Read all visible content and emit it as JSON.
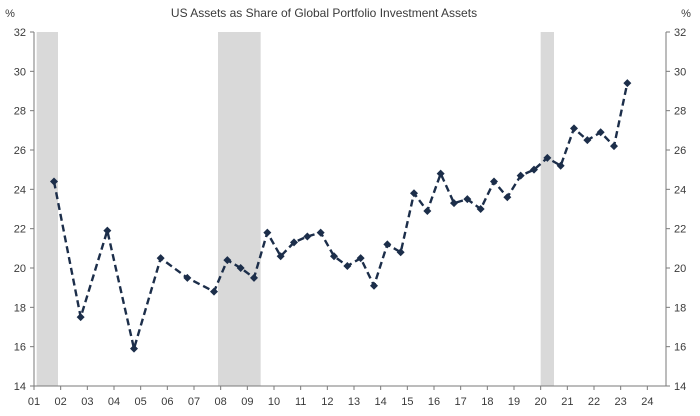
{
  "chart_data": {
    "type": "line",
    "title": "US Assets as Share of Global Portfolio Investment Assets",
    "ylabel_left": "%",
    "ylabel_right": "%",
    "xlabel": "",
    "ylim": [
      14,
      32
    ],
    "yticks": [
      14,
      16,
      18,
      20,
      22,
      24,
      26,
      28,
      30,
      32
    ],
    "xlim": [
      2001,
      2024.7
    ],
    "xticks": [
      {
        "value": 2001,
        "label": "01"
      },
      {
        "value": 2002,
        "label": "02"
      },
      {
        "value": 2003,
        "label": "03"
      },
      {
        "value": 2004,
        "label": "04"
      },
      {
        "value": 2005,
        "label": "05"
      },
      {
        "value": 2006,
        "label": "06"
      },
      {
        "value": 2007,
        "label": "07"
      },
      {
        "value": 2008,
        "label": "08"
      },
      {
        "value": 2009,
        "label": "09"
      },
      {
        "value": 2010,
        "label": "10"
      },
      {
        "value": 2011,
        "label": "11"
      },
      {
        "value": 2012,
        "label": "12"
      },
      {
        "value": 2013,
        "label": "13"
      },
      {
        "value": 2014,
        "label": "14"
      },
      {
        "value": 2015,
        "label": "15"
      },
      {
        "value": 2016,
        "label": "16"
      },
      {
        "value": 2017,
        "label": "17"
      },
      {
        "value": 2018,
        "label": "18"
      },
      {
        "value": 2019,
        "label": "19"
      },
      {
        "value": 2020,
        "label": "20"
      },
      {
        "value": 2021,
        "label": "21"
      },
      {
        "value": 2022,
        "label": "22"
      },
      {
        "value": 2023,
        "label": "23"
      },
      {
        "value": 2024,
        "label": "24"
      }
    ],
    "recessions": [
      {
        "start": 2001.1,
        "end": 2001.9
      },
      {
        "start": 2007.9,
        "end": 2009.5
      },
      {
        "start": 2020.0,
        "end": 2020.5
      }
    ],
    "series": [
      {
        "name": "US share of global portfolio investment assets",
        "color": "#1c2e4a",
        "points": [
          {
            "x": 2001.75,
            "y": 24.4
          },
          {
            "x": 2002.75,
            "y": 17.5
          },
          {
            "x": 2003.75,
            "y": 21.9
          },
          {
            "x": 2004.75,
            "y": 15.9
          },
          {
            "x": 2005.75,
            "y": 20.5
          },
          {
            "x": 2006.75,
            "y": 19.5
          },
          {
            "x": 2007.75,
            "y": 18.8
          },
          {
            "x": 2008.25,
            "y": 20.4
          },
          {
            "x": 2008.75,
            "y": 20.0
          },
          {
            "x": 2009.25,
            "y": 19.5
          },
          {
            "x": 2009.75,
            "y": 21.8
          },
          {
            "x": 2010.25,
            "y": 20.6
          },
          {
            "x": 2010.75,
            "y": 21.3
          },
          {
            "x": 2011.25,
            "y": 21.6
          },
          {
            "x": 2011.75,
            "y": 21.8
          },
          {
            "x": 2012.25,
            "y": 20.6
          },
          {
            "x": 2012.75,
            "y": 20.1
          },
          {
            "x": 2013.25,
            "y": 20.5
          },
          {
            "x": 2013.75,
            "y": 19.1
          },
          {
            "x": 2014.25,
            "y": 21.2
          },
          {
            "x": 2014.75,
            "y": 20.8
          },
          {
            "x": 2015.25,
            "y": 23.8
          },
          {
            "x": 2015.75,
            "y": 22.9
          },
          {
            "x": 2016.25,
            "y": 24.8
          },
          {
            "x": 2016.75,
            "y": 23.3
          },
          {
            "x": 2017.25,
            "y": 23.5
          },
          {
            "x": 2017.75,
            "y": 23.0
          },
          {
            "x": 2018.25,
            "y": 24.4
          },
          {
            "x": 2018.75,
            "y": 23.6
          },
          {
            "x": 2019.25,
            "y": 24.7
          },
          {
            "x": 2019.75,
            "y": 25.0
          },
          {
            "x": 2020.25,
            "y": 25.6
          },
          {
            "x": 2020.75,
            "y": 25.2
          },
          {
            "x": 2021.25,
            "y": 27.1
          },
          {
            "x": 2021.75,
            "y": 26.5
          },
          {
            "x": 2022.25,
            "y": 26.9
          },
          {
            "x": 2022.75,
            "y": 26.2
          },
          {
            "x": 2023.25,
            "y": 29.4
          }
        ]
      }
    ],
    "colors": {
      "line": "#1c2e4a",
      "recession_band": "#d9d9d9",
      "axis": "#7a7a7a",
      "text": "#3a3a3a"
    },
    "grid": false,
    "legend": "none"
  }
}
